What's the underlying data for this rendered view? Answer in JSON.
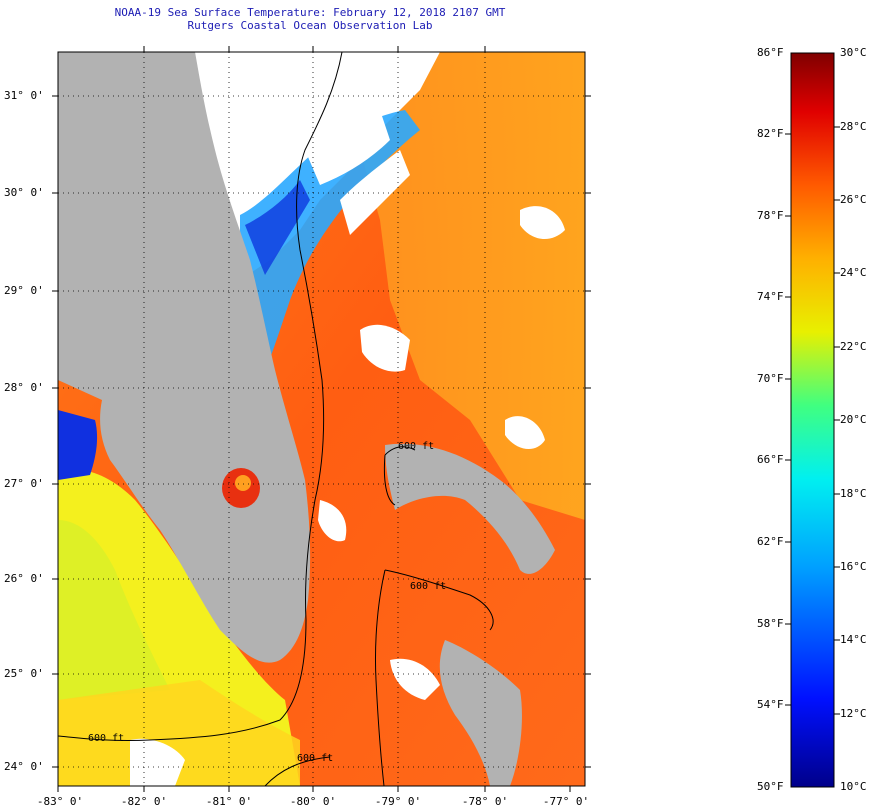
{
  "header": {
    "title": "NOAA-19 Sea Surface Temperature:  February 12, 2018 2107 GMT",
    "subtitle": "Rutgers Coastal Ocean Observation Lab"
  },
  "map": {
    "lat_labels": [
      "31° 0'",
      "30° 0'",
      "29° 0'",
      "28° 0'",
      "27° 0'",
      "26° 0'",
      "25° 0'",
      "24° 0'"
    ],
    "lon_labels": [
      "-83° 0'",
      "-82° 0'",
      "-81° 0'",
      "-80° 0'",
      "-79° 0'",
      "-78° 0'",
      "-77° 0'"
    ],
    "contour_labels": [
      "600 ft",
      "600 ft",
      "600 ft",
      "600 ft"
    ],
    "colors": {
      "land": "#b2b2b2",
      "cloud": "#ffffff",
      "warm": "#ff6a14",
      "cool_coast": "#2aa8ff",
      "gulf": "#f4f01e"
    }
  },
  "colorbar": {
    "fahrenheit": [
      "86°F",
      "82°F",
      "78°F",
      "74°F",
      "70°F",
      "66°F",
      "62°F",
      "58°F",
      "54°F",
      "50°F"
    ],
    "celsius": [
      "30°C",
      "28°C",
      "26°C",
      "24°C",
      "22°C",
      "20°C",
      "18°C",
      "16°C",
      "14°C",
      "12°C",
      "10°C"
    ]
  }
}
